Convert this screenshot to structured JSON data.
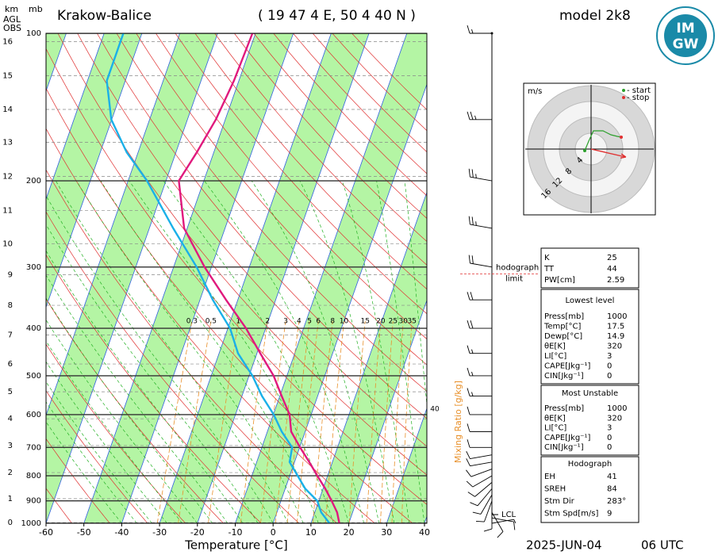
{
  "chart_data": {
    "type": "skewt",
    "title": "Krakow-Balice",
    "location": "( 19 47 4 E, 50 4 40 N )",
    "model": "model 2k8",
    "logo": [
      "IM",
      "GW"
    ],
    "x_label": "Temperature [°C]",
    "date": "2025-JUN-04",
    "time": "06 UTC",
    "xlim": [
      -60,
      40
    ],
    "xticks": [
      -60,
      -50,
      -40,
      -30,
      -20,
      -10,
      0,
      10,
      20,
      30,
      40
    ],
    "ylim": [
      1000,
      100
    ],
    "yunit": "mb",
    "yticks": [
      100,
      200,
      300,
      400,
      500,
      600,
      700,
      800,
      900,
      1000
    ],
    "km_axis": {
      "unit": "km",
      "label_lines": [
        "AGL",
        "OBS"
      ],
      "ticks": [
        0,
        1,
        2,
        3,
        4,
        5,
        6,
        7,
        8,
        9,
        10,
        11,
        12,
        13,
        14,
        15,
        16
      ],
      "pressure": [
        997,
        891,
        788,
        694,
        612,
        539,
        473,
        413,
        359,
        311,
        269,
        230,
        196,
        167,
        143,
        122,
        104
      ]
    },
    "pressure": [
      1000,
      950,
      900,
      850,
      800,
      750,
      700,
      650,
      600,
      550,
      500,
      450,
      400,
      350,
      300,
      250,
      200,
      175,
      150,
      125,
      100
    ],
    "series": [
      {
        "color": "#e0197d",
        "values": [
          17.5,
          15.9,
          13.4,
          10.6,
          7.3,
          3.9,
          0.1,
          -3.7,
          -5.7,
          -9.5,
          -13.5,
          -19.1,
          -25.2,
          -33.1,
          -41.8,
          -50.8,
          -56.6,
          -54.5,
          -52.5,
          -51.3,
          -50.8
        ]
      },
      {
        "color": "#1ab0e8",
        "values": [
          14.9,
          11.7,
          9.6,
          5.3,
          2.1,
          -1.3,
          -2,
          -6.2,
          -9.9,
          -14.7,
          -19.1,
          -25,
          -29.4,
          -36.6,
          -43.9,
          -53.7,
          -65,
          -73,
          -80.1,
          -84.9,
          -84.9
        ]
      }
    ],
    "mixing_ratio": {
      "label": "Mixing Ratio [g/kg]",
      "color": "#e8902a",
      "values": [
        0.3,
        0.5,
        1,
        2,
        3,
        4,
        5,
        6,
        8,
        10,
        15,
        20,
        25,
        30,
        35
      ]
    },
    "moist_label": "40",
    "lcl": {
      "label": "LCL",
      "pressure": 960
    },
    "hodograph_limit": {
      "label": [
        "hodograph",
        "limit"
      ],
      "pressure": 310
    },
    "winds": {
      "pressure": [
        1000,
        975,
        950,
        925,
        900,
        875,
        850,
        825,
        800,
        775,
        750,
        725,
        700,
        650,
        600,
        550,
        500,
        450,
        400,
        350,
        300,
        250,
        200,
        150,
        100
      ],
      "direction": [
        80,
        100,
        150,
        180,
        200,
        210,
        220,
        230,
        240,
        250,
        260,
        260,
        270,
        270,
        270,
        270,
        270,
        270,
        270,
        270,
        280,
        280,
        280,
        270,
        270
      ],
      "speed": [
        5,
        10,
        10,
        10,
        10,
        10,
        10,
        10,
        10,
        10,
        10,
        10,
        10,
        10,
        10,
        15,
        15,
        15,
        20,
        20,
        20,
        25,
        25,
        25,
        15
      ]
    },
    "hodograph": {
      "unit": "m/s",
      "start": "- start",
      "stop": "- stop",
      "rings": [
        4,
        8,
        12,
        16
      ],
      "u": [
        -1.6,
        -0.6,
        0.6,
        3,
        5,
        6.6,
        7.6
      ],
      "v": [
        -0.4,
        2,
        4.6,
        4.6,
        3.6,
        3.2,
        3
      ]
    }
  },
  "indices": {
    "general": [
      [
        "K",
        25
      ],
      [
        "TT",
        44
      ],
      [
        "PW[cm]",
        2.59
      ]
    ],
    "lowest": {
      "title": "Lowest level",
      "rows": [
        [
          "Press[mb]",
          1000
        ],
        [
          "Temp[°C]",
          17.5
        ],
        [
          "Dewp[°C]",
          14.9
        ],
        [
          "θE[K]",
          320
        ],
        [
          "LI[°C]",
          3
        ],
        [
          "CAPE[Jkg⁻¹]",
          0
        ],
        [
          "CIN[Jkg⁻¹]",
          0
        ]
      ]
    },
    "unstable": {
      "title": "Most Unstable",
      "rows": [
        [
          "Press[mb]",
          1000
        ],
        [
          "θE[K]",
          320
        ],
        [
          "LI[°C]",
          3
        ],
        [
          "CAPE[Jkg⁻¹]",
          0
        ],
        [
          "CIN[Jkg⁻¹]",
          0
        ]
      ]
    },
    "hodo": {
      "title": "Hodograph",
      "rows": [
        [
          "EH",
          41
        ],
        [
          "SREH",
          84
        ],
        [
          "Stm Dir",
          {
            "value": 283,
            "label": "283°"
          }
        ],
        [
          "Stm Spd[m/s]",
          9
        ]
      ]
    }
  }
}
